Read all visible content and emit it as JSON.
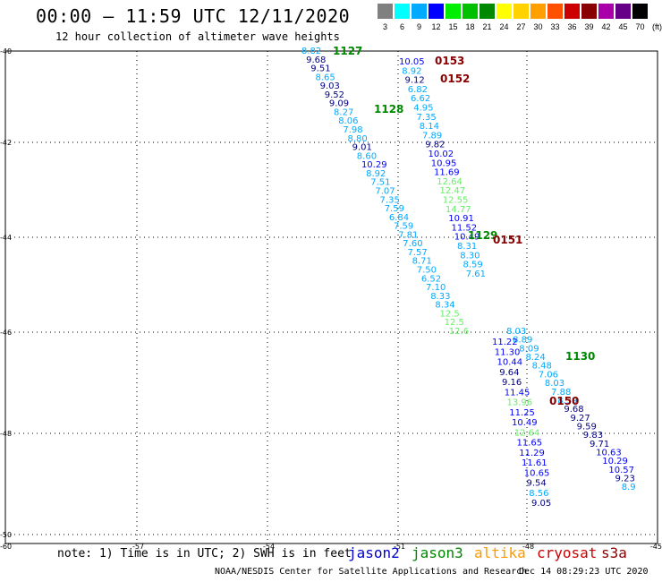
{
  "header": {
    "title": "00:00 – 11:59 UTC 12/11/2020",
    "subtitle": "12 hour collection of altimeter wave heights"
  },
  "color_scale": {
    "unit": "(ft)",
    "bins": [
      {
        "label": "3",
        "color": "#808080"
      },
      {
        "label": "6",
        "color": "#00ffff"
      },
      {
        "label": "9",
        "color": "#00aaff"
      },
      {
        "label": "12",
        "color": "#0000ff"
      },
      {
        "label": "15",
        "color": "#00ee00"
      },
      {
        "label": "18",
        "color": "#00c000"
      },
      {
        "label": "21",
        "color": "#008800"
      },
      {
        "label": "24",
        "color": "#ffff00"
      },
      {
        "label": "27",
        "color": "#ffd200"
      },
      {
        "label": "30",
        "color": "#ffa000"
      },
      {
        "label": "33",
        "color": "#ff5000"
      },
      {
        "label": "36",
        "color": "#cc0000"
      },
      {
        "label": "39",
        "color": "#880000"
      },
      {
        "label": "42",
        "color": "#aa00aa"
      },
      {
        "label": "45",
        "color": "#660088"
      },
      {
        "label": "70",
        "color": "#000000"
      }
    ]
  },
  "colors": {
    "cyan_text": "#00aaff",
    "blue_text": "#0000ff",
    "navy_text": "#000080",
    "lightgreen_text": "#66ee66",
    "darkgreen_text": "#008800",
    "darkred_text": "#880000"
  },
  "axes": {
    "lat_labels": [
      "-40",
      "-42",
      "-44",
      "-46",
      "-48",
      "-50"
    ],
    "lon_labels": [
      "-60",
      "-57",
      "-54",
      "-51",
      "-48",
      "-45"
    ]
  },
  "tracks": {
    "pass_labels": [
      "1127",
      "0153",
      "0152",
      "1128",
      "1129",
      "0151",
      "1130",
      "0150"
    ],
    "track_a": [
      "8.82",
      "9.68",
      "9.51",
      "8.65",
      "9.03",
      "9.52",
      "9.09",
      "8.27",
      "8.06",
      "7.98",
      "8.80",
      "9.01",
      "8.60",
      "10.29",
      "8.92",
      "7.51",
      "7.07",
      "7.35",
      "7.59",
      "6.84",
      "7.59",
      "7.81",
      "7.60",
      "7.57",
      "8.71",
      "7.50",
      "6.52",
      "7.10",
      "8.33",
      "8.34",
      "12.5",
      "12.5",
      "12.6"
    ],
    "track_b": [
      "10.05",
      "8.92",
      "9.12",
      "6.82",
      "6.62",
      "4.95",
      "7.35",
      "8.14",
      "7.89",
      "9.82",
      "10.02",
      "10.95",
      "11.69",
      "12.64",
      "12.47",
      "12.55",
      "14.77",
      "10.91",
      "11.52",
      "10.49",
      "8.31",
      "8.30",
      "8.59",
      "7.61"
    ],
    "track_c": [
      "8.03",
      "8.89",
      "8.09",
      "8.24",
      "8.48",
      "7.06",
      "8.03",
      "7.88",
      "8.39",
      "9.68",
      "9.27",
      "9.59",
      "9.83",
      "9.71",
      "10.63",
      "10.29",
      "10.57",
      "9.23",
      "8.9"
    ],
    "track_d": [
      "11.22",
      "11.30",
      "10.44",
      "9.64",
      "9.16",
      "11.45",
      "13.96",
      "11.25",
      "10.49",
      "12.64",
      "11.65",
      "11.29",
      "11.61",
      "10.65",
      "9.54",
      "8.56",
      "9.05"
    ]
  },
  "legend": {
    "note": "note: 1) Time is in UTC; 2) SWH is in feet",
    "satellites": [
      {
        "name": "jason2",
        "color": "#0000cc"
      },
      {
        "name": "jason3",
        "color": "#008800"
      },
      {
        "name": "altika",
        "color": "#ff9900"
      },
      {
        "name": "cryosat",
        "color": "#cc0000"
      },
      {
        "name": "s3a",
        "color": "#880000"
      }
    ]
  },
  "footer": {
    "credit": "NOAA/NESDIS Center for Satellite Applications and Research",
    "timestamp": "Dec 14 08:29:23 UTC 2020"
  }
}
